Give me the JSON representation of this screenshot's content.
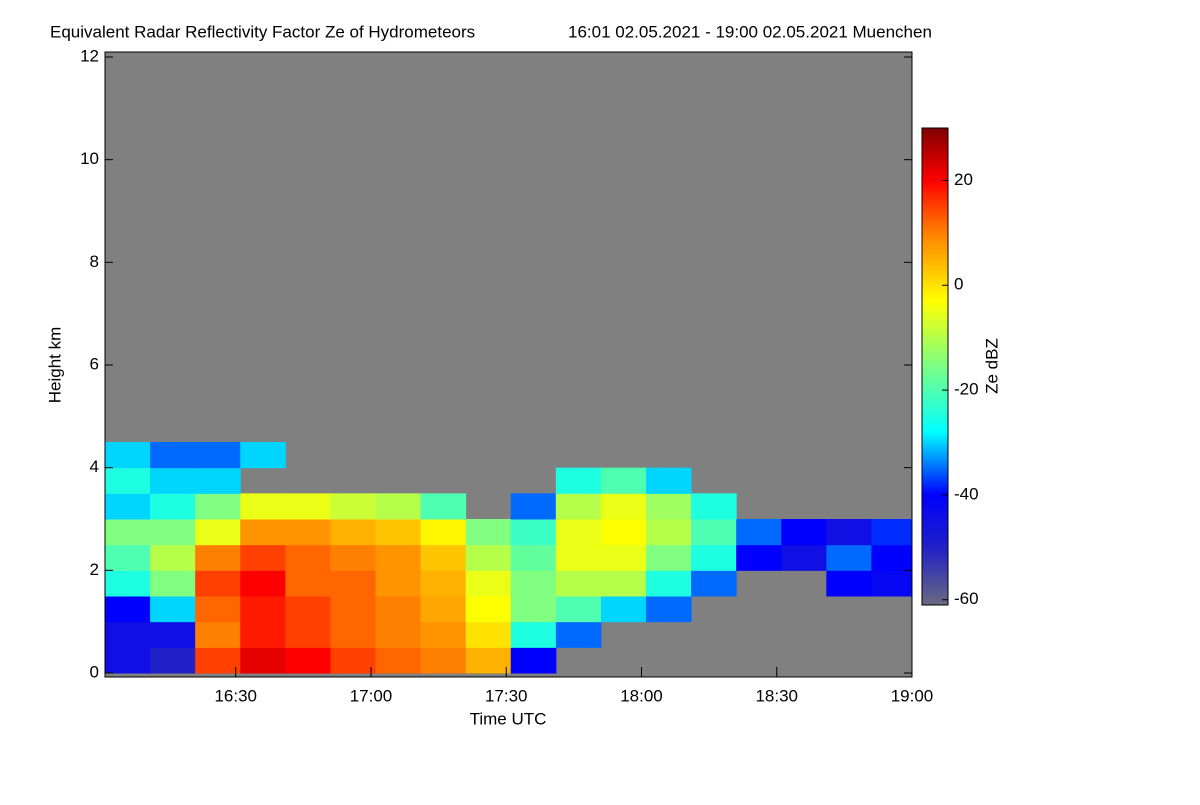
{
  "chart_data": {
    "type": "heatmap",
    "title": "Equivalent Radar Reflectivity Factor Ze of Hydrometeors",
    "subtitle": "16:01 02.05.2021 - 19:00 02.05.2021 Muenchen",
    "xlabel": "Time UTC",
    "ylabel": "Height km",
    "colorbar_label": "Ze dBZ",
    "background": "#808080",
    "xlim": [
      961,
      1140
    ],
    "xticks": [
      {
        "value": 990,
        "label": "16:30"
      },
      {
        "value": 1020,
        "label": "17:00"
      },
      {
        "value": 1050,
        "label": "17:30"
      },
      {
        "value": 1080,
        "label": "18:00"
      },
      {
        "value": 1110,
        "label": "18:30"
      },
      {
        "value": 1140,
        "label": "19:00"
      }
    ],
    "ylim": [
      0,
      12
    ],
    "yticks": [
      0,
      2,
      4,
      6,
      8,
      10,
      12
    ],
    "zlim": [
      -61,
      30
    ],
    "zticks": [
      -60,
      -40,
      -20,
      0,
      20
    ],
    "colorscale": [
      {
        "value": -61,
        "color": "#6a6a80"
      },
      {
        "value": -50,
        "color": "#2020c8"
      },
      {
        "value": -40,
        "color": "#0000ff"
      },
      {
        "value": -28,
        "color": "#00ffff"
      },
      {
        "value": -15,
        "color": "#80ff80"
      },
      {
        "value": -3,
        "color": "#ffff00"
      },
      {
        "value": 10,
        "color": "#ff8000"
      },
      {
        "value": 20,
        "color": "#ff0000"
      },
      {
        "value": 30,
        "color": "#800000"
      }
    ],
    "xbins": [
      961,
      971,
      981,
      991,
      1001,
      1011,
      1021,
      1031,
      1041,
      1051,
      1061,
      1071,
      1081,
      1091,
      1101,
      1111,
      1121,
      1131,
      1140
    ],
    "ybins": [
      0,
      0.5,
      1,
      1.5,
      2,
      2.5,
      3,
      3.5,
      4,
      4.5
    ],
    "z": [
      [
        -45,
        -50,
        15,
        22,
        20,
        15,
        12,
        10,
        5,
        -40,
        null,
        null,
        null,
        null,
        null,
        null,
        null,
        null
      ],
      [
        -45,
        -45,
        10,
        18,
        15,
        12,
        10,
        8,
        0,
        -25,
        -35,
        null,
        null,
        null,
        null,
        null,
        null,
        null
      ],
      [
        -40,
        -30,
        12,
        18,
        15,
        12,
        10,
        6,
        -3,
        -15,
        -20,
        -30,
        -35,
        null,
        null,
        null,
        null,
        null
      ],
      [
        -25,
        -15,
        15,
        20,
        12,
        12,
        8,
        5,
        -5,
        -15,
        -10,
        -10,
        -25,
        -35,
        null,
        null,
        -40,
        -42
      ],
      [
        -20,
        -10,
        10,
        15,
        12,
        10,
        8,
        3,
        -10,
        -18,
        -5,
        -5,
        -15,
        -25,
        -40,
        -45,
        -35,
        -40
      ],
      [
        -15,
        -15,
        -5,
        8,
        8,
        5,
        3,
        -2,
        -15,
        -22,
        -5,
        -3,
        -10,
        -20,
        -35,
        -40,
        -45,
        -38
      ],
      [
        -30,
        -25,
        -15,
        -5,
        -5,
        -8,
        -10,
        -20,
        null,
        -35,
        -10,
        -5,
        -12,
        -25,
        null,
        null,
        null,
        null
      ],
      [
        -25,
        -30,
        -30,
        null,
        null,
        null,
        null,
        null,
        null,
        null,
        -25,
        -20,
        -30,
        null,
        null,
        null,
        null,
        null
      ],
      [
        -30,
        -35,
        -35,
        -30,
        null,
        null,
        null,
        null,
        null,
        null,
        null,
        null,
        null,
        null,
        null,
        null,
        null,
        null
      ]
    ]
  }
}
